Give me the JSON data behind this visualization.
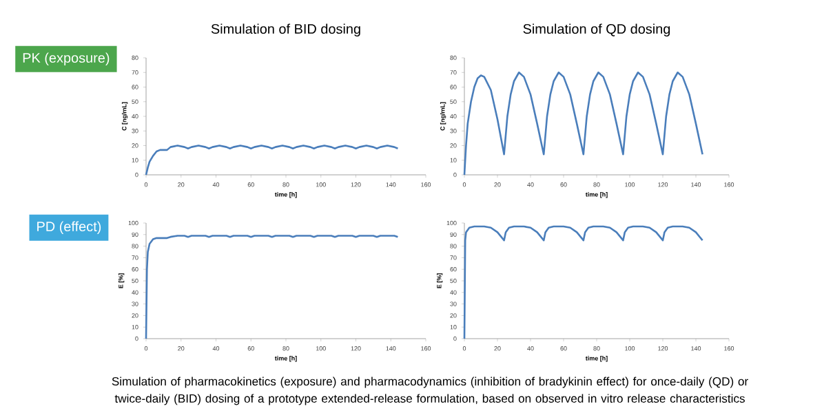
{
  "chart_data": [
    {
      "type": "line",
      "title": "Simulation of BID dosing",
      "xlabel": "time [h]",
      "ylabel": "C [ng/mL]",
      "color": "#4a7ebb",
      "annotations": [
        "PK (exposure)"
      ],
      "xlim": [
        0,
        160
      ],
      "ylim": [
        0,
        80
      ],
      "xticks": [
        0,
        20,
        40,
        60,
        80,
        100,
        120,
        140,
        160
      ],
      "yticks": [
        0,
        10,
        20,
        30,
        40,
        50,
        60,
        70,
        80
      ],
      "x": [
        0,
        1,
        2,
        4,
        6,
        8,
        10,
        12,
        14,
        18,
        22,
        24,
        26,
        30,
        34,
        36,
        38,
        42,
        46,
        48,
        50,
        54,
        58,
        60,
        62,
        66,
        70,
        72,
        74,
        78,
        82,
        84,
        86,
        90,
        94,
        96,
        98,
        102,
        106,
        108,
        110,
        114,
        118,
        120,
        122,
        126,
        130,
        132,
        134,
        138,
        142,
        144
      ],
      "values": [
        0,
        5,
        9,
        13,
        16,
        17,
        17,
        17,
        19,
        20,
        19,
        18,
        19,
        20,
        19,
        18,
        19,
        20,
        19,
        18,
        19,
        20,
        19,
        18,
        19,
        20,
        19,
        18,
        19,
        20,
        19,
        18,
        19,
        20,
        19,
        18,
        19,
        20,
        19,
        18,
        19,
        20,
        19,
        18,
        19,
        20,
        19,
        18,
        19,
        20,
        19,
        18
      ]
    },
    {
      "type": "line",
      "title": "Simulation of QD dosing",
      "xlabel": "time [h]",
      "ylabel": "C [ng/mL]",
      "color": "#4a7ebb",
      "xlim": [
        0,
        160
      ],
      "ylim": [
        0,
        80
      ],
      "xticks": [
        0,
        20,
        40,
        60,
        80,
        100,
        120,
        140,
        160
      ],
      "yticks": [
        0,
        10,
        20,
        30,
        40,
        50,
        60,
        70,
        80
      ],
      "x": [
        0,
        1,
        2,
        4,
        6,
        8,
        10,
        12,
        16,
        20,
        24,
        26,
        28,
        30,
        33,
        36,
        40,
        44,
        48,
        50,
        52,
        54,
        57,
        60,
        64,
        68,
        72,
        74,
        76,
        78,
        81,
        84,
        88,
        92,
        96,
        98,
        100,
        102,
        105,
        108,
        112,
        116,
        120,
        122,
        124,
        126,
        129,
        132,
        136,
        140,
        144
      ],
      "values": [
        0,
        20,
        35,
        50,
        60,
        66,
        68,
        67,
        58,
        38,
        14,
        40,
        55,
        64,
        70,
        67,
        55,
        35,
        14,
        40,
        55,
        64,
        70,
        67,
        55,
        35,
        14,
        40,
        55,
        64,
        70,
        67,
        55,
        35,
        14,
        40,
        55,
        64,
        70,
        67,
        55,
        35,
        14,
        40,
        55,
        64,
        70,
        67,
        55,
        35,
        14
      ]
    },
    {
      "type": "line",
      "xlabel": "time [h]",
      "ylabel": "E [%]",
      "color": "#4a7ebb",
      "annotations": [
        "PD (effect)",
        "Simulation of pharmacokinetics (exposure) and pharmacodynamics (inhibition of bradykinin effect) for once-daily (QD) or twice-daily (BID) dosing of a prototype extended-release formulation, based on observed in vitro release characteristics"
      ],
      "xlim": [
        0,
        160
      ],
      "ylim": [
        0,
        100
      ],
      "xticks": [
        0,
        20,
        40,
        60,
        80,
        100,
        120,
        140,
        160
      ],
      "yticks": [
        0,
        10,
        20,
        30,
        40,
        50,
        60,
        70,
        80,
        90,
        100
      ],
      "x": [
        0,
        0.5,
        1,
        2,
        4,
        6,
        8,
        10,
        12,
        14,
        18,
        22,
        24,
        26,
        30,
        34,
        36,
        38,
        42,
        46,
        48,
        50,
        54,
        58,
        60,
        62,
        66,
        70,
        72,
        74,
        78,
        82,
        84,
        86,
        90,
        94,
        96,
        98,
        102,
        106,
        108,
        110,
        114,
        118,
        120,
        122,
        126,
        130,
        132,
        134,
        138,
        142,
        144
      ],
      "values": [
        0,
        60,
        75,
        82,
        86,
        87,
        87,
        87,
        87,
        88,
        89,
        89,
        88,
        89,
        89,
        89,
        88,
        89,
        89,
        89,
        88,
        89,
        89,
        89,
        88,
        89,
        89,
        89,
        88,
        89,
        89,
        89,
        88,
        89,
        89,
        89,
        88,
        89,
        89,
        89,
        88,
        89,
        89,
        89,
        88,
        89,
        89,
        89,
        88,
        89,
        89,
        89,
        88
      ]
    },
    {
      "type": "line",
      "xlabel": "time [h]",
      "ylabel": "E [%]",
      "color": "#4a7ebb",
      "xlim": [
        0,
        160
      ],
      "ylim": [
        0,
        100
      ],
      "xticks": [
        0,
        20,
        40,
        60,
        80,
        100,
        120,
        140,
        160
      ],
      "yticks": [
        0,
        10,
        20,
        30,
        40,
        50,
        60,
        70,
        80,
        90,
        100
      ],
      "x": [
        0,
        0.5,
        1,
        3,
        6,
        12,
        16,
        20,
        24,
        25,
        27,
        30,
        36,
        40,
        44,
        48,
        49,
        51,
        54,
        60,
        64,
        68,
        72,
        73,
        75,
        78,
        84,
        88,
        92,
        96,
        97,
        99,
        102,
        108,
        112,
        116,
        120,
        121,
        123,
        126,
        132,
        136,
        140,
        144
      ],
      "values": [
        0,
        85,
        92,
        96,
        97,
        97,
        96,
        92,
        85,
        92,
        96,
        97,
        97,
        96,
        92,
        85,
        92,
        96,
        97,
        97,
        96,
        92,
        85,
        92,
        96,
        97,
        97,
        96,
        92,
        85,
        92,
        96,
        97,
        97,
        96,
        92,
        85,
        92,
        96,
        97,
        97,
        96,
        92,
        85
      ]
    }
  ]
}
